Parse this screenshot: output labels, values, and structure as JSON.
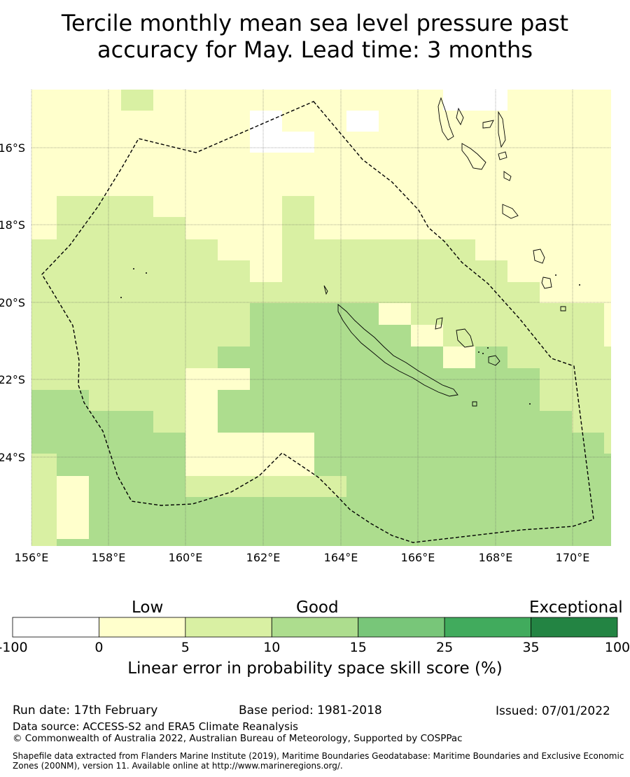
{
  "title": {
    "line1": "Tercile monthly mean sea level pressure past",
    "line2": "accuracy for May. Lead time: 3 months"
  },
  "map": {
    "region": "New Caledonia EEZ",
    "lon_range": [
      156,
      171
    ],
    "lat_range": [
      -26.5,
      -14.5
    ],
    "lat_ticks": [
      "16°S",
      "18°S",
      "20°S",
      "22°S",
      "24°S"
    ],
    "lon_ticks": [
      "156°E",
      "158°E",
      "160°E",
      "162°E",
      "164°E",
      "166°E",
      "168°E",
      "170°E"
    ],
    "grid": true,
    "boundary_style": "dashed",
    "skill_class_colors": {
      "none": "#ffffff",
      "0-5": "#ffffcc",
      "5-10": "#d9f0a3",
      "10-15": "#addd8e",
      "15-25": "#78c679",
      "25-35": "#41ab5d",
      "35-100": "#238443"
    }
  },
  "colorbar": {
    "category_labels": [
      "Low",
      "Good",
      "Exceptional"
    ],
    "ticks": [
      "-100",
      "0",
      "5",
      "10",
      "15",
      "25",
      "35",
      "100"
    ],
    "colors": [
      "#ffffff",
      "#ffffcc",
      "#d9f0a3",
      "#addd8e",
      "#78c679",
      "#41ab5d",
      "#238443"
    ],
    "label": "Linear error in probability space skill score (%)"
  },
  "footer": {
    "run_date": "Run date: 17th February",
    "base_period": "Base period: 1981-2018",
    "issued": "Issued: 07/01/2022",
    "data_source": "Data source: ACCESS-S2 and ERA5 Climate Reanalysis",
    "copyright": "© Commonwealth of Australia 2022, Australian Bureau of Meteorology, Supported by COSPPac",
    "shapefile": "Shapefile data extracted from Flanders Marine Institute (2019), Maritime Boundaries Geodatabase: Maritime Boundaries and Exclusive Economic Zones (200NM), version 11. Available online at http://www.marineregions.org/."
  }
}
